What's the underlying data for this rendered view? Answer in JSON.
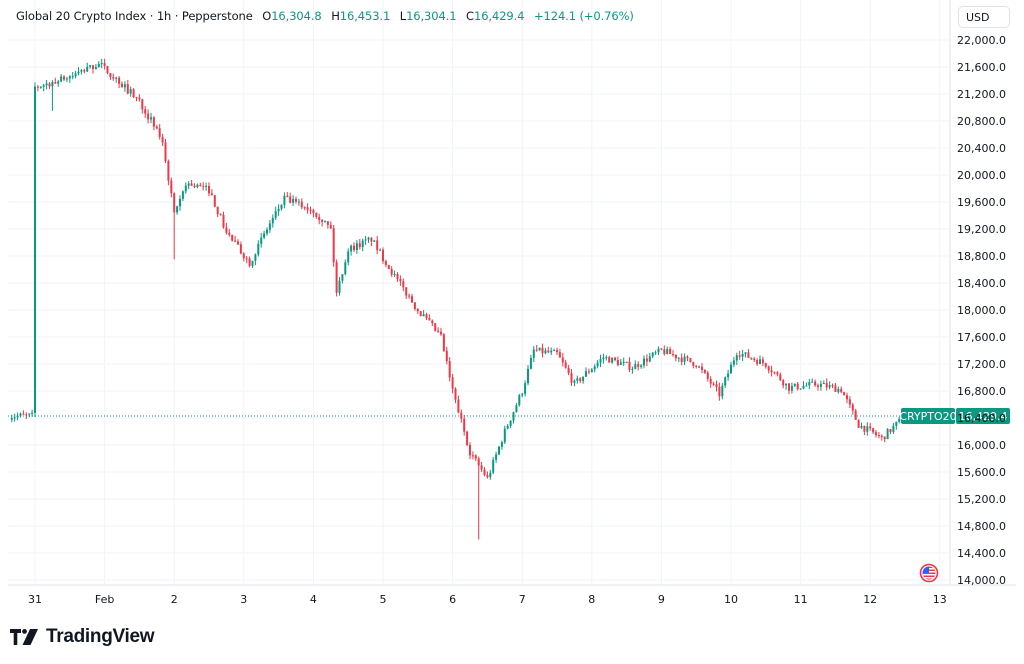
{
  "header": {
    "symbol_title": "Global 20 Crypto Index · 1h · Pepperstone",
    "open_label": "O",
    "open": "16,304.8",
    "high_label": "H",
    "high": "16,453.1",
    "low_label": "L",
    "low": "16,304.1",
    "close_label": "C",
    "close": "16,429.4",
    "change": "+124.1 (+0.76%)"
  },
  "currency_button": "USD",
  "price_label": {
    "symbol": "CRYPTO20",
    "value": "16,429.4"
  },
  "branding": {
    "logo_text": "TradingView"
  },
  "colors": {
    "up": "#089981",
    "down": "#f23645",
    "grid": "#f0f3fa",
    "text": "#131722",
    "price_line": "#089981"
  },
  "chart_data": {
    "type": "candlestick",
    "title": "Global 20 Crypto Index · 1h · Pepperstone",
    "xlabel": "",
    "ylabel": "USD",
    "ylim": [
      13900,
      22300
    ],
    "y_ticks": [
      14000,
      14400,
      14800,
      15200,
      15600,
      16000,
      16400,
      16800,
      17200,
      17600,
      18000,
      18400,
      18800,
      19200,
      19600,
      20000,
      20400,
      20800,
      21200,
      21600,
      22000
    ],
    "y_tick_labels": [
      "14,000.0",
      "14,400.0",
      "14,800.0",
      "15,200.0",
      "15,600.0",
      "16,000.0",
      "16,400.0",
      "16,800.0",
      "17,200.0",
      "17,600.0",
      "18,000.0",
      "18,400.0",
      "18,800.0",
      "19,200.0",
      "19,600.0",
      "20,000.0",
      "20,400.0",
      "20,800.0",
      "21,200.0",
      "21,600.0",
      "22,000.0"
    ],
    "x_ticks": [
      "31",
      "Feb",
      "2",
      "3",
      "4",
      "5",
      "6",
      "7",
      "8",
      "9",
      "10",
      "11",
      "12",
      "13"
    ],
    "grid": true,
    "last_price": 16429.4,
    "key_path": [
      {
        "t": "Jan 31 00:00",
        "price": 21300
      },
      {
        "t": "Jan 31 12:00",
        "price": 21450
      },
      {
        "t": "Jan 31 22:00",
        "price": 21650
      },
      {
        "t": "Feb 1 04:00",
        "price": 21420
      },
      {
        "t": "Feb 1 12:00",
        "price": 21100
      },
      {
        "t": "Feb 1 20:00",
        "price": 20500
      },
      {
        "t": "Feb 2 00:00",
        "price": 19400
      },
      {
        "t": "Feb 2 04:00",
        "price": 19880
      },
      {
        "t": "Feb 2 12:00",
        "price": 19780
      },
      {
        "t": "Feb 2 18:00",
        "price": 19150
      },
      {
        "t": "Feb 3 02:00",
        "price": 18700
      },
      {
        "t": "Feb 3 08:00",
        "price": 19200
      },
      {
        "t": "Feb 3 14:00",
        "price": 19650
      },
      {
        "t": "Feb 4 00:00",
        "price": 19480
      },
      {
        "t": "Feb 4 06:00",
        "price": 19200
      },
      {
        "t": "Feb 4 08:00",
        "price": 18250
      },
      {
        "t": "Feb 4 12:00",
        "price": 18900
      },
      {
        "t": "Feb 4 20:00",
        "price": 19050
      },
      {
        "t": "Feb 5 04:00",
        "price": 18500
      },
      {
        "t": "Feb 5 12:00",
        "price": 18000
      },
      {
        "t": "Feb 5 20:00",
        "price": 17600
      },
      {
        "t": "Feb 6 00:00",
        "price": 16800
      },
      {
        "t": "Feb 6 06:00",
        "price": 15900
      },
      {
        "t": "Feb 6 12:00",
        "price": 15500
      },
      {
        "t": "Feb 6 18:00",
        "price": 16200
      },
      {
        "t": "Feb 7 00:00",
        "price": 16800
      },
      {
        "t": "Feb 7 04:00",
        "price": 17400
      },
      {
        "t": "Feb 7 12:00",
        "price": 17350
      },
      {
        "t": "Feb 7 18:00",
        "price": 16900
      },
      {
        "t": "Feb 8 04:00",
        "price": 17300
      },
      {
        "t": "Feb 8 14:00",
        "price": 17150
      },
      {
        "t": "Feb 9 00:00",
        "price": 17400
      },
      {
        "t": "Feb 9 12:00",
        "price": 17200
      },
      {
        "t": "Feb 9 20:00",
        "price": 16750
      },
      {
        "t": "Feb 10 02:00",
        "price": 17380
      },
      {
        "t": "Feb 10 12:00",
        "price": 17200
      },
      {
        "t": "Feb 10 20:00",
        "price": 16850
      },
      {
        "t": "Feb 11 06:00",
        "price": 16900
      },
      {
        "t": "Feb 11 14:00",
        "price": 16820
      },
      {
        "t": "Feb 11 20:00",
        "price": 16300
      },
      {
        "t": "Feb 12 04:00",
        "price": 16100
      },
      {
        "t": "Feb 12 12:00",
        "price": 16429.4
      }
    ],
    "notable_wicks": [
      {
        "t": "Jan 31 06:00",
        "low": 20950
      },
      {
        "t": "Feb 2 00:00",
        "low": 18750
      },
      {
        "t": "Feb 6 09:00",
        "low": 14600
      }
    ]
  }
}
